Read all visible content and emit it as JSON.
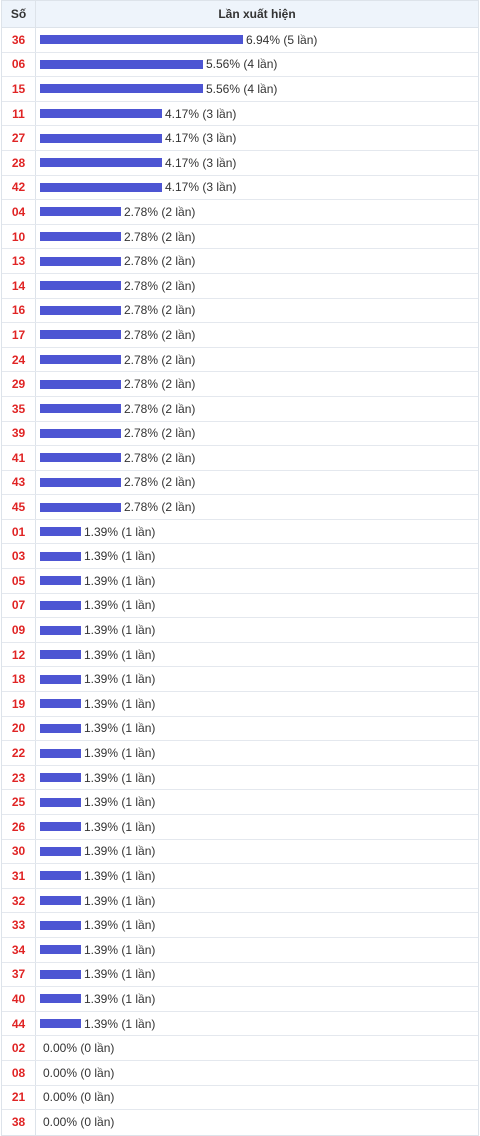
{
  "table": {
    "header_col1": "Số",
    "header_col2": "Lần xuất hiện"
  },
  "chart_data": {
    "type": "bar",
    "orientation": "horizontal",
    "xlim": [
      0,
      6.94
    ],
    "categories": [
      "36",
      "06",
      "15",
      "11",
      "27",
      "28",
      "42",
      "04",
      "10",
      "13",
      "14",
      "16",
      "17",
      "24",
      "29",
      "35",
      "39",
      "41",
      "43",
      "45",
      "01",
      "03",
      "05",
      "07",
      "09",
      "12",
      "18",
      "19",
      "20",
      "22",
      "23",
      "25",
      "26",
      "30",
      "31",
      "32",
      "33",
      "34",
      "37",
      "40",
      "44",
      "02",
      "08",
      "21",
      "38"
    ],
    "values": [
      6.94,
      5.56,
      5.56,
      4.17,
      4.17,
      4.17,
      4.17,
      2.78,
      2.78,
      2.78,
      2.78,
      2.78,
      2.78,
      2.78,
      2.78,
      2.78,
      2.78,
      2.78,
      2.78,
      2.78,
      1.39,
      1.39,
      1.39,
      1.39,
      1.39,
      1.39,
      1.39,
      1.39,
      1.39,
      1.39,
      1.39,
      1.39,
      1.39,
      1.39,
      1.39,
      1.39,
      1.39,
      1.39,
      1.39,
      1.39,
      1.39,
      0,
      0,
      0,
      0
    ],
    "labels": [
      "6.94% (5 lần)",
      "5.56% (4 lần)",
      "5.56% (4 lần)",
      "4.17% (3 lần)",
      "4.17% (3 lần)",
      "4.17% (3 lần)",
      "4.17% (3 lần)",
      "2.78% (2 lần)",
      "2.78% (2 lần)",
      "2.78% (2 lần)",
      "2.78% (2 lần)",
      "2.78% (2 lần)",
      "2.78% (2 lần)",
      "2.78% (2 lần)",
      "2.78% (2 lần)",
      "2.78% (2 lần)",
      "2.78% (2 lần)",
      "2.78% (2 lần)",
      "2.78% (2 lần)",
      "2.78% (2 lần)",
      "1.39% (1 lần)",
      "1.39% (1 lần)",
      "1.39% (1 lần)",
      "1.39% (1 lần)",
      "1.39% (1 lần)",
      "1.39% (1 lần)",
      "1.39% (1 lần)",
      "1.39% (1 lần)",
      "1.39% (1 lần)",
      "1.39% (1 lần)",
      "1.39% (1 lần)",
      "1.39% (1 lần)",
      "1.39% (1 lần)",
      "1.39% (1 lần)",
      "1.39% (1 lần)",
      "1.39% (1 lần)",
      "1.39% (1 lần)",
      "1.39% (1 lần)",
      "1.39% (1 lần)",
      "1.39% (1 lần)",
      "1.39% (1 lần)",
      "0.00% (0 lần)",
      "0.00% (0 lần)",
      "0.00% (0 lần)",
      "0.00% (0 lần)"
    ],
    "colors": {
      "bar": "#4d55d3",
      "number": "#e02424",
      "header_bg": "#eef4fb"
    }
  }
}
